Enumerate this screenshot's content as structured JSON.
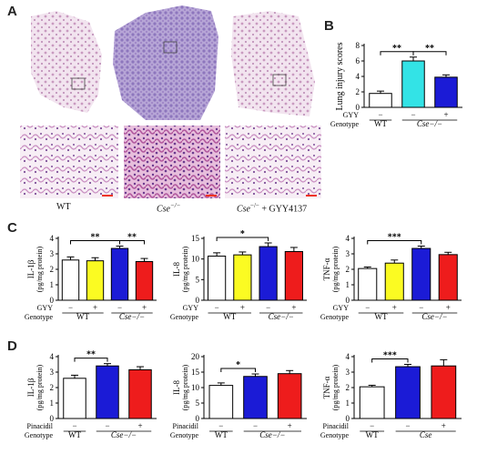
{
  "panels": {
    "A": {
      "letter": "A",
      "labels": {
        "wt": "WT",
        "cse": "Cse",
        "cse_sup": "−/−",
        "cse_gyy": "Cse",
        "cse_gyy_sup": "−/−",
        "cse_gyy_suffix": " + GYY4137"
      }
    },
    "B": {
      "letter": "B"
    },
    "C": {
      "letter": "C"
    },
    "D": {
      "letter": "D"
    }
  },
  "colors": {
    "white": "#ffffff",
    "cyan": "#33e3e6",
    "blue": "#1b1bd6",
    "yellow": "#fbfb22",
    "red": "#ee1c1c",
    "tissue_pink": "#d9a7cc",
    "tissue_purple": "#a98ccf"
  },
  "chart_data": [
    {
      "id": "B",
      "type": "bar",
      "ylabel": "Lung injury scores",
      "ylim": [
        0,
        8
      ],
      "yticks": [
        0,
        2,
        4,
        6,
        8
      ],
      "row_labels": [
        {
          "name": "GYY",
          "values": [
            "−",
            "−",
            "+"
          ]
        },
        {
          "name": "Genotype",
          "values": [
            "WT",
            "Cse−/−"
          ]
        }
      ],
      "values": [
        1.8,
        6.0,
        3.9
      ],
      "errors": [
        0.3,
        0.5,
        0.3
      ],
      "colors": [
        "#ffffff",
        "#33e3e6",
        "#1b1bd6"
      ],
      "significance": [
        {
          "from": 0,
          "to": 1,
          "label": "**"
        },
        {
          "from": 1,
          "to": 2,
          "label": "**"
        }
      ]
    },
    {
      "id": "C1",
      "type": "bar",
      "ylabel": "IL-1β",
      "ylabel2": "(pg/mg protein)",
      "ylim": [
        0,
        4
      ],
      "yticks": [
        0,
        1,
        2,
        3,
        4
      ],
      "row_labels": [
        {
          "name": "GYY",
          "values": [
            "−",
            "+",
            "−",
            "+"
          ]
        },
        {
          "name": "Genotype",
          "values": [
            "WT",
            "Cse−/−"
          ]
        }
      ],
      "values": [
        2.6,
        2.55,
        3.35,
        2.5
      ],
      "errors": [
        0.2,
        0.2,
        0.15,
        0.2
      ],
      "colors": [
        "#ffffff",
        "#fbfb22",
        "#1b1bd6",
        "#ee1c1c"
      ],
      "significance": [
        {
          "from": 0,
          "to": 2,
          "label": "**"
        },
        {
          "from": 2,
          "to": 3,
          "label": "**"
        }
      ]
    },
    {
      "id": "C2",
      "type": "bar",
      "ylabel": "IL-8",
      "ylabel2": "(pg/mg protein)",
      "ylim": [
        0,
        15
      ],
      "yticks": [
        0,
        5,
        10,
        15
      ],
      "row_labels": [
        {
          "name": "GYY",
          "values": [
            "−",
            "+",
            "−",
            "+"
          ]
        },
        {
          "name": "Genotype",
          "values": [
            "WT",
            "Cse−/−"
          ]
        }
      ],
      "values": [
        10.7,
        11.0,
        13.0,
        11.8
      ],
      "errors": [
        0.8,
        0.7,
        0.9,
        1.0
      ],
      "colors": [
        "#ffffff",
        "#fbfb22",
        "#1b1bd6",
        "#ee1c1c"
      ],
      "significance": [
        {
          "from": 0,
          "to": 2,
          "label": "*"
        }
      ]
    },
    {
      "id": "C3",
      "type": "bar",
      "ylabel": "TNF-α",
      "ylabel2": "(pg/mg protein)",
      "ylim": [
        0,
        4
      ],
      "yticks": [
        0,
        1,
        2,
        3,
        4
      ],
      "row_labels": [
        {
          "name": "GYY",
          "values": [
            "−",
            "+",
            "−",
            "+"
          ]
        },
        {
          "name": "Genotype",
          "values": [
            "WT",
            "Cse−/−"
          ]
        }
      ],
      "values": [
        2.05,
        2.4,
        3.35,
        2.95
      ],
      "errors": [
        0.1,
        0.2,
        0.15,
        0.15
      ],
      "colors": [
        "#ffffff",
        "#fbfb22",
        "#1b1bd6",
        "#ee1c1c"
      ],
      "significance": [
        {
          "from": 0,
          "to": 2,
          "label": "***"
        }
      ]
    },
    {
      "id": "D1",
      "type": "bar",
      "ylabel": "IL-1β",
      "ylabel2": "(pg/mg protein)",
      "ylim": [
        0,
        4
      ],
      "yticks": [
        0,
        1,
        2,
        3,
        4
      ],
      "row_labels": [
        {
          "name": "Pinacidil",
          "values": [
            "−",
            "−",
            "+"
          ]
        },
        {
          "name": "Genotype",
          "values": [
            "WT",
            "Cse−/−"
          ]
        }
      ],
      "values": [
        2.6,
        3.4,
        3.15
      ],
      "errors": [
        0.2,
        0.15,
        0.2
      ],
      "colors": [
        "#ffffff",
        "#1b1bd6",
        "#ee1c1c"
      ],
      "significance": [
        {
          "from": 0,
          "to": 1,
          "label": "**"
        }
      ]
    },
    {
      "id": "D2",
      "type": "bar",
      "ylabel": "IL-8",
      "ylabel2": "(pg/mg protein)",
      "ylim": [
        0,
        20
      ],
      "yticks": [
        0,
        5,
        10,
        15,
        20
      ],
      "row_labels": [
        {
          "name": "Pinacidil",
          "values": [
            "−",
            "−",
            "+"
          ]
        },
        {
          "name": "Genotype",
          "values": [
            "WT",
            "Cse−/−"
          ]
        }
      ],
      "values": [
        10.7,
        13.6,
        14.5
      ],
      "errors": [
        0.8,
        0.8,
        1.0
      ],
      "colors": [
        "#ffffff",
        "#1b1bd6",
        "#ee1c1c"
      ],
      "significance": [
        {
          "from": 0,
          "to": 1,
          "label": "*"
        }
      ]
    },
    {
      "id": "D3",
      "type": "bar",
      "ylabel": "TNF-α",
      "ylabel2": "(pg/mg protein)",
      "ylim": [
        0,
        4
      ],
      "yticks": [
        0,
        1,
        2,
        3,
        4
      ],
      "row_labels": [
        {
          "name": "Pinacidil",
          "values": [
            "−",
            "−",
            "+"
          ]
        },
        {
          "name": "Genotype",
          "values": [
            "WT",
            "Cse"
          ]
        }
      ],
      "values": [
        2.05,
        3.35,
        3.4
      ],
      "errors": [
        0.1,
        0.15,
        0.4
      ],
      "colors": [
        "#ffffff",
        "#1b1bd6",
        "#ee1c1c"
      ],
      "significance": [
        {
          "from": 0,
          "to": 1,
          "label": "***"
        }
      ]
    }
  ]
}
